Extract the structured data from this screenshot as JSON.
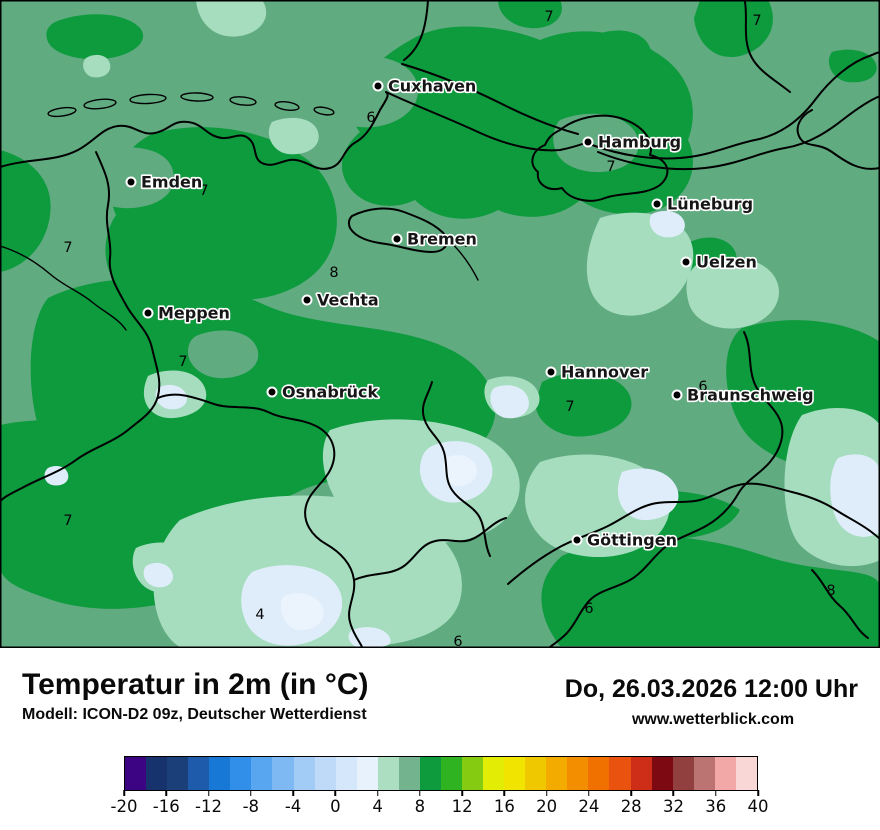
{
  "map": {
    "region": "Niedersachsen / Northern Germany",
    "palette": {
      "base_6_8": "#61AB80",
      "green_8_10": "#0D9B3E",
      "mint_4_6": "#A5DDBE",
      "pale_blue_2_4": "#DFEDFA",
      "pale_blue_0_2": "#EBF4FD"
    },
    "cities": [
      {
        "name": "Cuxhaven"
      },
      {
        "name": "Hamburg"
      },
      {
        "name": "Emden"
      },
      {
        "name": "Lüneburg"
      },
      {
        "name": "Bremen"
      },
      {
        "name": "Uelzen"
      },
      {
        "name": "Vechta"
      },
      {
        "name": "Meppen"
      },
      {
        "name": "Hannover"
      },
      {
        "name": "Osnabrück"
      },
      {
        "name": "Braunschweig"
      },
      {
        "name": "Göttingen"
      }
    ],
    "contour_labels": [
      {
        "value": "7"
      },
      {
        "value": "7"
      },
      {
        "value": "6"
      },
      {
        "value": "7"
      },
      {
        "value": "7"
      },
      {
        "value": "7"
      },
      {
        "value": "8"
      },
      {
        "value": "7"
      },
      {
        "value": "7"
      },
      {
        "value": "6"
      },
      {
        "value": "7"
      },
      {
        "value": "7"
      },
      {
        "value": "4"
      },
      {
        "value": "6"
      },
      {
        "value": "6"
      },
      {
        "value": "8"
      }
    ]
  },
  "footer": {
    "title": "Temperatur in 2m (in °C)",
    "model": "Modell: ICON-D2 09z, Deutscher Wetterdienst",
    "datetime": "Do, 26.03.2026 12:00 Uhr",
    "website": "www.wetterblick.com"
  },
  "colorbar": {
    "unit": "°C",
    "min": -20,
    "max": 40,
    "segment_step": 2,
    "segment_colors": [
      "#3C0382",
      "#17336E",
      "#1B4079",
      "#1E5CAB",
      "#1778D6",
      "#318FE9",
      "#57A6EF",
      "#7FB9F3",
      "#A2CCF6",
      "#BFDAF9",
      "#D5E7FB",
      "#E8F2FD",
      "#ACDEC2",
      "#73B38D",
      "#0D9B3E",
      "#2FB321",
      "#84CB11",
      "#E2EC04",
      "#F0E400",
      "#F0C800",
      "#F3AB00",
      "#F38E00",
      "#F07000",
      "#EA520F",
      "#CE2E18",
      "#7D0A12",
      "#92403F",
      "#BC7472",
      "#F2A8A6",
      "#F9D7D6"
    ],
    "tick_labels": [
      "-20",
      "-16",
      "-12",
      "-8",
      "-4",
      "0",
      "4",
      "8",
      "12",
      "16",
      "20",
      "24",
      "28",
      "32",
      "36",
      "40"
    ]
  }
}
